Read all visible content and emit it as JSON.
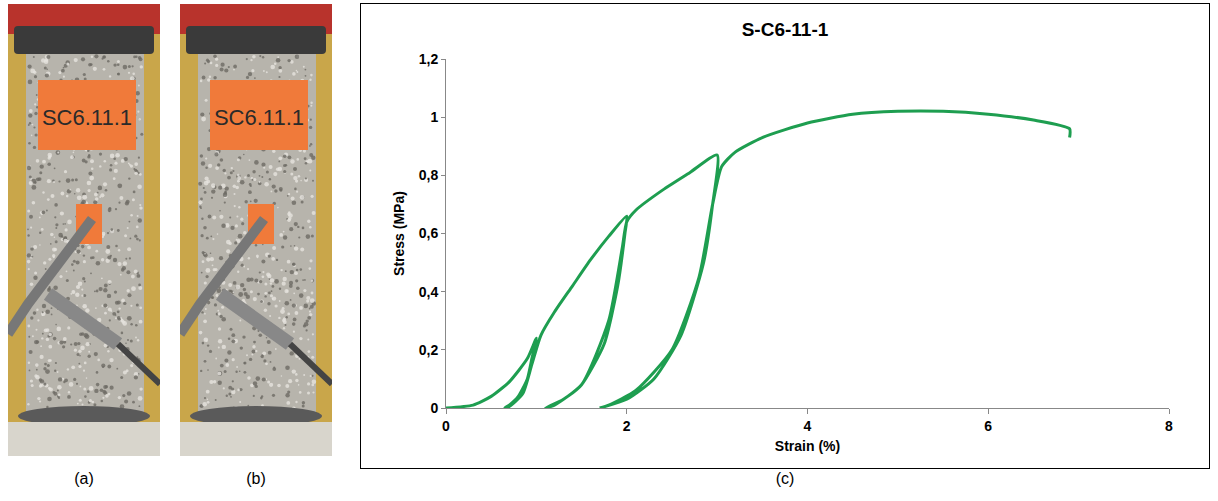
{
  "panels": [
    {
      "label": "(a)",
      "specimen_label": "SC6.11.1"
    },
    {
      "label": "(b)",
      "specimen_label": "SC6.11.1"
    },
    {
      "label": "(c)"
    }
  ],
  "chart_data": {
    "type": "line",
    "title": "S-C6-11-1",
    "x_label": "Strain (%)",
    "y_label": "Stress (MPa)",
    "series": [
      {
        "name": "S-C6-11-1",
        "color": "#1e9e50",
        "x": [
          0,
          0.3,
          0.5,
          0.7,
          0.9,
          1.0,
          0.95,
          0.9,
          0.8,
          0.7,
          0.65,
          0.7,
          0.85,
          0.95,
          1.05,
          1.2,
          1.4,
          1.6,
          1.8,
          2.0,
          1.98,
          1.9,
          1.75,
          1.5,
          1.3,
          1.1,
          1.2,
          1.5,
          1.8,
          1.95,
          2.0,
          2.1,
          2.4,
          2.7,
          3.0,
          2.95,
          2.85,
          2.6,
          2.3,
          2.0,
          1.7,
          1.8,
          2.1,
          2.5,
          2.8,
          2.95,
          3.05,
          3.2,
          3.5,
          4.0,
          4.5,
          5.0,
          5.5,
          6.0,
          6.5,
          6.9,
          6.9
        ],
        "values": [
          0,
          0.01,
          0.04,
          0.09,
          0.17,
          0.24,
          0.17,
          0.1,
          0.04,
          0.01,
          0,
          0.005,
          0.05,
          0.15,
          0.25,
          0.33,
          0.42,
          0.51,
          0.59,
          0.66,
          0.6,
          0.42,
          0.22,
          0.08,
          0.03,
          0,
          0.01,
          0.08,
          0.3,
          0.55,
          0.64,
          0.68,
          0.75,
          0.81,
          0.87,
          0.7,
          0.5,
          0.25,
          0.1,
          0.03,
          0,
          0.01,
          0.06,
          0.2,
          0.45,
          0.7,
          0.83,
          0.88,
          0.93,
          0.98,
          1.01,
          1.02,
          1.02,
          1.01,
          0.99,
          0.96,
          0.93
        ]
      }
    ],
    "xlim": [
      0,
      8
    ],
    "xticks": [
      0,
      2,
      4,
      6,
      8
    ],
    "ylim": [
      0,
      1.2
    ],
    "yticks": [
      0,
      {
        "value": 0.2,
        "label": "0,2"
      },
      {
        "value": 0.4,
        "label": "0,4"
      },
      {
        "value": 0.6,
        "label": "0,6"
      },
      {
        "value": 0.8,
        "label": "0,8"
      },
      1,
      {
        "value": 1.2,
        "label": "1,2"
      }
    ],
    "grid": false,
    "line_style": "solid"
  }
}
